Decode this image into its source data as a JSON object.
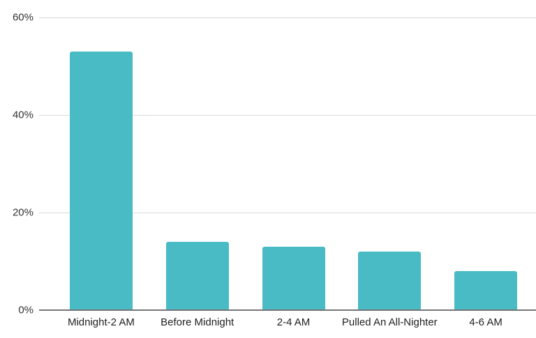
{
  "chart_data": {
    "type": "bar",
    "title": "",
    "xlabel": "",
    "ylabel": "",
    "categories": [
      "Midnight-2 AM",
      "Before Midnight",
      "2-4 AM",
      "Pulled An All-Nighter",
      "4-6 AM"
    ],
    "values": [
      53,
      14,
      13,
      12,
      8
    ],
    "value_unit": "%",
    "ylim": [
      0,
      60
    ],
    "yticks": [
      0,
      20,
      40,
      60
    ],
    "ytick_labels": [
      "0%",
      "20%",
      "40%",
      "60%"
    ],
    "grid": true,
    "legend": "none",
    "colors": {
      "bar": "#49bbc5",
      "gridline": "#d9d9d9",
      "axis_line": "#757575",
      "ytick_text": "#333333",
      "xtick_text": "#1f1f1f",
      "background": "#ffffff"
    }
  }
}
